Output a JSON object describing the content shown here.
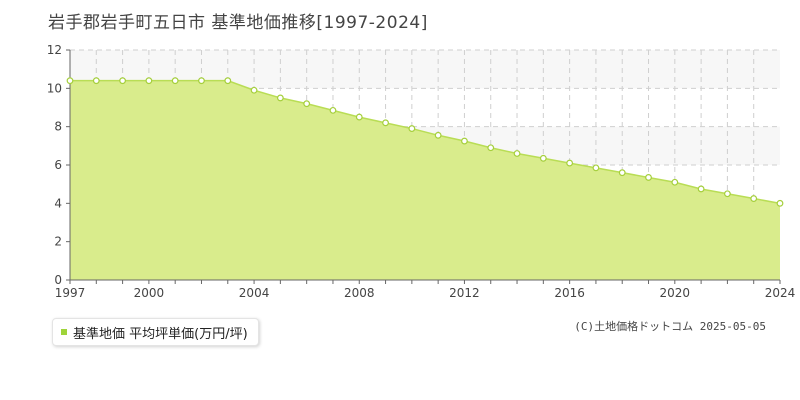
{
  "title": "岩手郡岩手町五日市 基準地価推移[1997-2024]",
  "legend": {
    "label": "基準地価 平均坪単価(万円/坪)"
  },
  "copyright": "(C)土地価格ドットコム 2025-05-05",
  "colors": {
    "fill": "#d9ec8c",
    "line": "#b9dd55",
    "marker": "#a5cf3c",
    "legend": "#9fd43a",
    "band": "#f7f7f7",
    "grid": "#cfcfcf"
  },
  "chart_data": {
    "type": "area",
    "title": "岩手郡岩手町五日市 基準地価推移[1997-2024]",
    "xlabel": "",
    "ylabel": "",
    "x": [
      1997,
      1998,
      1999,
      2000,
      2001,
      2002,
      2003,
      2004,
      2005,
      2006,
      2007,
      2008,
      2009,
      2010,
      2011,
      2012,
      2013,
      2014,
      2015,
      2016,
      2017,
      2018,
      2019,
      2020,
      2021,
      2022,
      2023,
      2024
    ],
    "series": [
      {
        "name": "基準地価 平均坪単価(万円/坪)",
        "values": [
          10.4,
          10.4,
          10.4,
          10.4,
          10.4,
          10.4,
          10.4,
          9.9,
          9.5,
          9.2,
          8.85,
          8.5,
          8.2,
          7.9,
          7.55,
          7.25,
          6.9,
          6.6,
          6.35,
          6.1,
          5.85,
          5.6,
          5.35,
          5.1,
          4.75,
          4.5,
          4.25,
          4.0
        ]
      }
    ],
    "xlim": [
      1997,
      2024
    ],
    "ylim": [
      0,
      12
    ],
    "x_ticks": [
      "1997",
      "2000",
      "2004",
      "2008",
      "2012",
      "2016",
      "2020",
      "2024"
    ],
    "y_ticks": [
      "0",
      "2",
      "4",
      "6",
      "8",
      "10",
      "12"
    ],
    "grid": true,
    "legend_position": "bottom-left"
  }
}
